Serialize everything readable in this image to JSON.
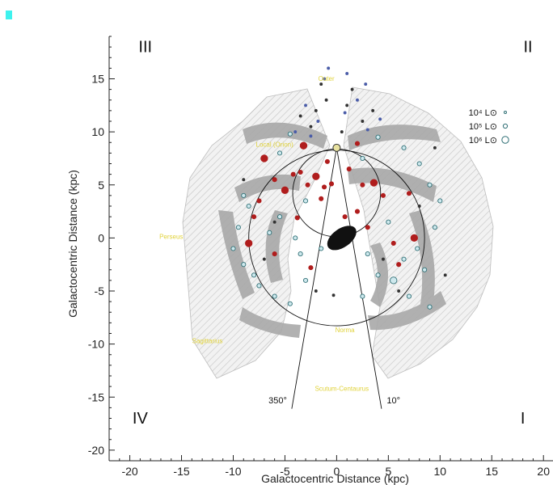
{
  "chart_data": {
    "type": "scatter",
    "xlabel": "Galactocentric Distance (kpc)",
    "ylabel": "Galactocentric Distance (kpc)",
    "xlim": [
      -22,
      21
    ],
    "ylim": [
      -21,
      19
    ],
    "xticks": [
      -20,
      -15,
      -10,
      -5,
      0,
      5,
      10,
      15,
      20
    ],
    "yticks": [
      -20,
      -15,
      -10,
      -5,
      0,
      5,
      10,
      15
    ],
    "quadrants": [
      {
        "label": "III",
        "x": -18.5,
        "y": 17.5
      },
      {
        "label": "II",
        "x": 18.5,
        "y": 17.5
      },
      {
        "label": "IV",
        "x": -19.0,
        "y": -17.5
      },
      {
        "label": "I",
        "x": 18.0,
        "y": -17.5
      }
    ],
    "arm_labels": [
      {
        "label": "Outer",
        "x": -1.0,
        "y": 14.8
      },
      {
        "label": "Local (Orion)",
        "x": -6.0,
        "y": 8.6
      },
      {
        "label": "Perseus",
        "x": -16.0,
        "y": -0.1
      },
      {
        "label": "Sagittarius",
        "x": -12.5,
        "y": -9.9
      },
      {
        "label": "Norma",
        "x": 0.8,
        "y": -8.9
      },
      {
        "label": "Scutum-Centaurus",
        "x": 0.5,
        "y": -14.4
      }
    ],
    "line_labels": [
      {
        "label": "350°",
        "x": -5.7,
        "y": -15.6
      },
      {
        "label": "10°",
        "x": 5.5,
        "y": -15.6
      }
    ],
    "sun": {
      "x": 0,
      "y": 8.5
    },
    "circles": [
      {
        "cx": 0,
        "cy": 0,
        "r": 8.5
      },
      {
        "cx": 0,
        "cy": 4.25,
        "r": 4.25
      }
    ],
    "lines": [
      {
        "x1": 0,
        "y1": 8.5,
        "x2": -4.34,
        "y2": -16.1
      },
      {
        "x1": 0,
        "y1": 8.5,
        "x2": 4.34,
        "y2": -16.1
      }
    ],
    "legend": [
      {
        "label": "10⁴ L⊙",
        "size": 1
      },
      {
        "label": "10⁵ L⊙",
        "size": 2
      },
      {
        "label": "10⁶ L⊙",
        "size": 3
      }
    ],
    "series": [
      {
        "name": "",
        "color": "#b01d1d",
        "points": [
          [
            -7.0,
            7.5,
            3
          ],
          [
            -6.0,
            5.5,
            2
          ],
          [
            -5.0,
            4.5,
            3
          ],
          [
            -4.2,
            6.0,
            2
          ],
          [
            -3.5,
            6.2,
            2
          ],
          [
            -2.8,
            5.0,
            2
          ],
          [
            -2.0,
            5.8,
            3
          ],
          [
            -1.2,
            4.8,
            2
          ],
          [
            -0.9,
            7.2,
            2
          ],
          [
            -0.5,
            5.1,
            2
          ],
          [
            1.2,
            6.5,
            2
          ],
          [
            2.5,
            5.0,
            2
          ],
          [
            3.6,
            5.2,
            3
          ],
          [
            4.5,
            4.0,
            2
          ],
          [
            2.0,
            2.5,
            2
          ],
          [
            -3.8,
            1.9,
            2
          ],
          [
            -7.5,
            3.5,
            2
          ],
          [
            -8.5,
            -0.5,
            3
          ],
          [
            -6.0,
            -1.5,
            2
          ],
          [
            -2.5,
            -2.8,
            2
          ],
          [
            6.0,
            -2.5,
            2
          ],
          [
            7.5,
            0.0,
            3
          ],
          [
            7.0,
            4.2,
            2
          ],
          [
            5.5,
            -0.5,
            2
          ],
          [
            -3.2,
            8.7,
            3
          ],
          [
            2.0,
            8.9,
            2
          ],
          [
            -1.5,
            3.7,
            2
          ],
          [
            0.8,
            2.0,
            2
          ],
          [
            3.0,
            1.0,
            2
          ],
          [
            -8.0,
            2.0,
            2
          ]
        ]
      },
      {
        "name": "",
        "color": "#2f6f75",
        "points": [
          [
            -9.0,
            4.0,
            2
          ],
          [
            -8.5,
            3.0,
            2
          ],
          [
            -9.5,
            1.0,
            2
          ],
          [
            -10.0,
            -1.0,
            2
          ],
          [
            -9.0,
            -2.5,
            2
          ],
          [
            -7.5,
            -4.5,
            2
          ],
          [
            -6.0,
            -5.5,
            2
          ],
          [
            -4.5,
            -6.2,
            2
          ],
          [
            -3.0,
            -4.0,
            2
          ],
          [
            -5.5,
            2.0,
            2
          ],
          [
            -6.5,
            0.5,
            2
          ],
          [
            -4.0,
            0.0,
            2
          ],
          [
            -3.5,
            -1.5,
            2
          ],
          [
            -1.5,
            -1.0,
            2
          ],
          [
            4.0,
            -3.5,
            2
          ],
          [
            5.5,
            -4.0,
            3
          ],
          [
            6.5,
            -2.0,
            2
          ],
          [
            7.0,
            -5.5,
            2
          ],
          [
            8.5,
            -3.0,
            2
          ],
          [
            9.5,
            1.0,
            2
          ],
          [
            10.0,
            3.5,
            2
          ],
          [
            9.0,
            5.0,
            2
          ],
          [
            8.0,
            7.0,
            2
          ],
          [
            6.5,
            8.5,
            2
          ],
          [
            4.0,
            9.5,
            2
          ],
          [
            3.0,
            -1.5,
            2
          ],
          [
            2.5,
            -5.5,
            2
          ],
          [
            9.0,
            -6.5,
            2
          ],
          [
            -8.0,
            -3.5,
            2
          ],
          [
            5.0,
            1.5,
            2
          ],
          [
            -3.0,
            3.5,
            2
          ],
          [
            2.5,
            7.5,
            2
          ],
          [
            -4.5,
            9.8,
            2
          ],
          [
            -5.5,
            8.0,
            2
          ],
          [
            7.8,
            -1.0,
            2
          ]
        ]
      },
      {
        "name": "",
        "color": "#333333",
        "points": [
          [
            -2.0,
            12.0,
            1
          ],
          [
            -1.0,
            13.0,
            1
          ],
          [
            1.0,
            12.5,
            1
          ],
          [
            2.5,
            11.0,
            1
          ],
          [
            -2.5,
            10.5,
            1
          ],
          [
            0.5,
            10.0,
            1
          ],
          [
            3.5,
            12.0,
            1
          ],
          [
            -3.5,
            11.5,
            1
          ],
          [
            1.5,
            14.0,
            1
          ],
          [
            -1.5,
            14.5,
            1
          ],
          [
            -6.0,
            1.5,
            1
          ],
          [
            4.5,
            -2.0,
            1
          ],
          [
            -2.0,
            -5.0,
            1
          ],
          [
            6.0,
            -5.0,
            1
          ],
          [
            -7.0,
            -2.0,
            1
          ],
          [
            8.0,
            3.0,
            1
          ],
          [
            -0.3,
            -5.4,
            1
          ],
          [
            10.5,
            -3.5,
            1
          ],
          [
            9.5,
            8.5,
            1
          ],
          [
            -9.0,
            5.5,
            1
          ]
        ]
      },
      {
        "name": "",
        "color": "#4a5ca8",
        "points": [
          [
            -3.0,
            12.5,
            1
          ],
          [
            -1.8,
            11.0,
            1
          ],
          [
            0.8,
            11.8,
            1
          ],
          [
            2.0,
            13.0,
            1
          ],
          [
            -4.0,
            10.0,
            1
          ],
          [
            3.0,
            10.2,
            1
          ],
          [
            -0.8,
            16.0,
            1
          ],
          [
            1.0,
            15.5,
            1
          ],
          [
            -2.5,
            9.6,
            1
          ],
          [
            4.2,
            11.2,
            1
          ],
          [
            -1.2,
            15.0,
            1
          ],
          [
            2.8,
            14.5,
            1
          ]
        ]
      }
    ],
    "central_cluster": {
      "x": 0.5,
      "y": 0.0,
      "rx": 1.6,
      "ry": 0.9,
      "rotation": -35
    }
  }
}
